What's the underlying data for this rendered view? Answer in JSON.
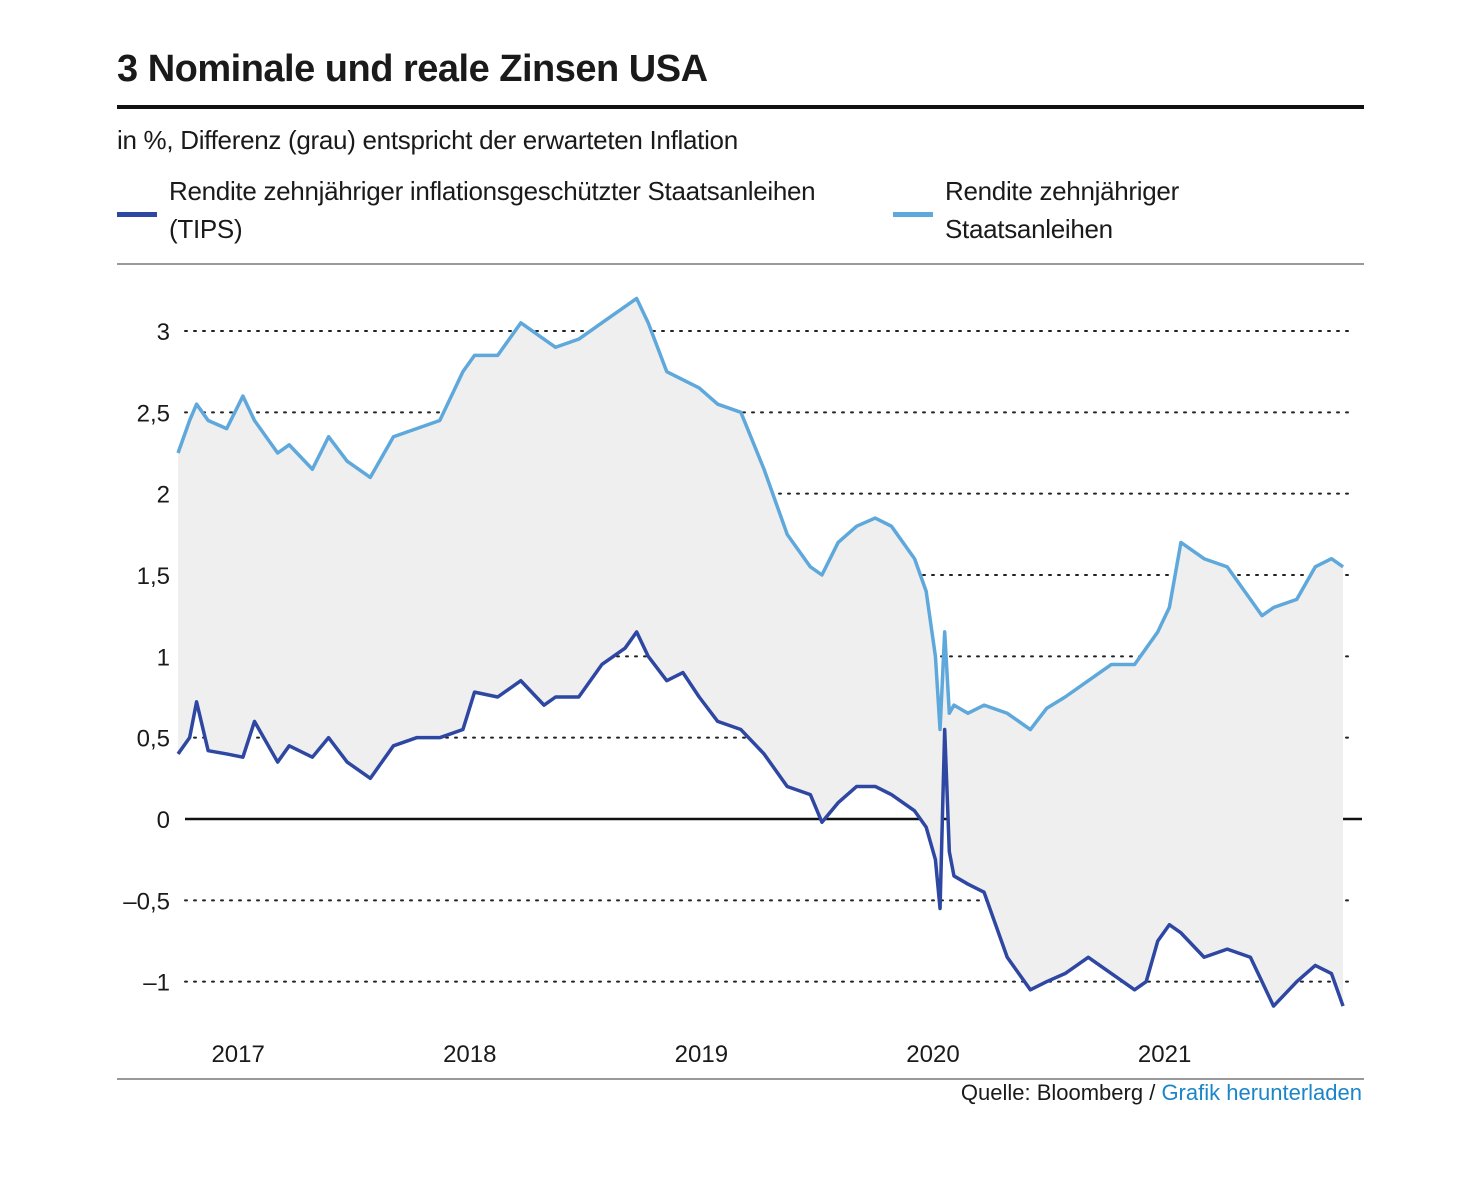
{
  "header": {
    "title": "3 Nominale und reale Zinsen USA",
    "subtitle": "in %, Differenz (grau) entspricht der erwarteten Inflation"
  },
  "legend": {
    "tips_line1": "Rendite zehnjähriger inflationsgeschützter Staatsanleihen",
    "tips_line2": "(TIPS)",
    "nominal_line1": "Rendite zehnjähriger",
    "nominal_line2": "Staatsanleihen"
  },
  "footer": {
    "source": "Quelle: Bloomberg /",
    "link": "Grafik herunterladen"
  },
  "colors": {
    "tips": "#2e47a2",
    "nominal": "#5ea8dc",
    "fill": "#efefef",
    "grid": "#222222",
    "link": "#1a86c8"
  },
  "chart_data": {
    "type": "line",
    "xlabel": "",
    "ylabel": "",
    "ylim": [
      -1.25,
      3.3
    ],
    "xlim": [
      2016.9,
      2021.93
    ],
    "y_ticks": [
      3,
      2.5,
      2,
      1.5,
      1,
      0.5,
      0,
      -0.5,
      -1
    ],
    "y_tick_labels": [
      "3",
      "2,5",
      "2",
      "1,5",
      "1",
      "0,5",
      "0",
      "–0,5",
      "–1"
    ],
    "x_tick_labels": [
      "2017",
      "2018",
      "2019",
      "2020",
      "2021"
    ],
    "x_tick_positions": [
      2017.0,
      2018.0,
      2019.0,
      2020.0,
      2021.0
    ],
    "grid": "dotted horizontal",
    "series": [
      {
        "name": "Rendite zehnjähriger inflationsgeschützter Staatsanleihen (TIPS)",
        "x": [
          2016.87,
          2016.92,
          2016.95,
          2017.0,
          2017.08,
          2017.15,
          2017.2,
          2017.3,
          2017.35,
          2017.45,
          2017.52,
          2017.6,
          2017.7,
          2017.8,
          2017.9,
          2018.0,
          2018.1,
          2018.15,
          2018.25,
          2018.35,
          2018.45,
          2018.5,
          2018.6,
          2018.7,
          2018.8,
          2018.85,
          2018.9,
          2018.98,
          2019.05,
          2019.12,
          2019.2,
          2019.3,
          2019.4,
          2019.5,
          2019.6,
          2019.65,
          2019.72,
          2019.8,
          2019.88,
          2019.95,
          2020.05,
          2020.1,
          2020.14,
          2020.16,
          2020.18,
          2020.2,
          2020.22,
          2020.28,
          2020.35,
          2020.45,
          2020.55,
          2020.62,
          2020.7,
          2020.8,
          2020.9,
          2021.0,
          2021.05,
          2021.1,
          2021.15,
          2021.2,
          2021.3,
          2021.4,
          2021.5,
          2021.55,
          2021.6,
          2021.7,
          2021.78,
          2021.85,
          2021.9
        ],
        "y": [
          0.4,
          0.5,
          0.72,
          0.42,
          0.4,
          0.38,
          0.6,
          0.35,
          0.45,
          0.38,
          0.5,
          0.35,
          0.25,
          0.45,
          0.5,
          0.5,
          0.55,
          0.78,
          0.75,
          0.85,
          0.7,
          0.75,
          0.75,
          0.95,
          1.05,
          1.15,
          1.0,
          0.85,
          0.9,
          0.75,
          0.6,
          0.55,
          0.4,
          0.2,
          0.15,
          -0.02,
          0.1,
          0.2,
          0.2,
          0.15,
          0.05,
          -0.05,
          -0.25,
          -0.55,
          0.55,
          -0.2,
          -0.35,
          -0.4,
          -0.45,
          -0.85,
          -1.05,
          -1.0,
          -0.95,
          -0.85,
          -0.95,
          -1.05,
          -1.0,
          -0.75,
          -0.65,
          -0.7,
          -0.85,
          -0.8,
          -0.85,
          -1.0,
          -1.15,
          -1.0,
          -0.9,
          -0.95,
          -1.15
        ]
      },
      {
        "name": "Rendite zehnjähriger Staatsanleihen",
        "x": [
          2016.87,
          2016.92,
          2016.95,
          2017.0,
          2017.08,
          2017.15,
          2017.2,
          2017.3,
          2017.35,
          2017.45,
          2017.52,
          2017.6,
          2017.7,
          2017.8,
          2017.9,
          2018.0,
          2018.1,
          2018.15,
          2018.25,
          2018.35,
          2018.45,
          2018.5,
          2018.6,
          2018.7,
          2018.8,
          2018.85,
          2018.9,
          2018.98,
          2019.05,
          2019.12,
          2019.2,
          2019.3,
          2019.4,
          2019.5,
          2019.6,
          2019.65,
          2019.72,
          2019.8,
          2019.88,
          2019.95,
          2020.05,
          2020.1,
          2020.14,
          2020.16,
          2020.18,
          2020.2,
          2020.22,
          2020.28,
          2020.35,
          2020.45,
          2020.55,
          2020.62,
          2020.7,
          2020.8,
          2020.9,
          2021.0,
          2021.05,
          2021.1,
          2021.15,
          2021.2,
          2021.3,
          2021.4,
          2021.5,
          2021.55,
          2021.6,
          2021.7,
          2021.78,
          2021.85,
          2021.9
        ],
        "y": [
          2.25,
          2.45,
          2.55,
          2.45,
          2.4,
          2.6,
          2.45,
          2.25,
          2.3,
          2.15,
          2.35,
          2.2,
          2.1,
          2.35,
          2.4,
          2.45,
          2.75,
          2.85,
          2.85,
          3.05,
          2.95,
          2.9,
          2.95,
          3.05,
          3.15,
          3.2,
          3.05,
          2.75,
          2.7,
          2.65,
          2.55,
          2.5,
          2.15,
          1.75,
          1.55,
          1.5,
          1.7,
          1.8,
          1.85,
          1.8,
          1.6,
          1.4,
          1.0,
          0.55,
          1.15,
          0.65,
          0.7,
          0.65,
          0.7,
          0.65,
          0.55,
          0.68,
          0.75,
          0.85,
          0.95,
          0.95,
          1.05,
          1.15,
          1.3,
          1.7,
          1.6,
          1.55,
          1.35,
          1.25,
          1.3,
          1.35,
          1.55,
          1.6,
          1.55
        ]
      }
    ]
  }
}
